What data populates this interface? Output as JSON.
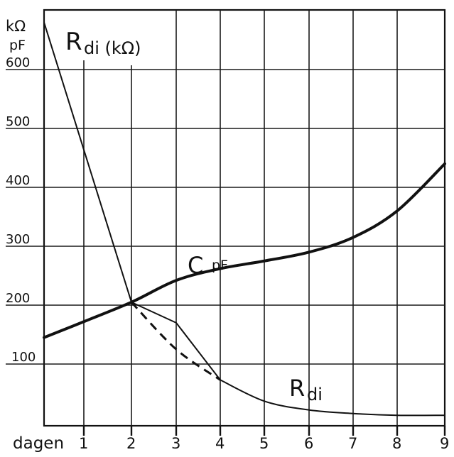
{
  "chart_data": {
    "type": "line",
    "title": "",
    "xlabel": "dagen",
    "ylabel": "kΩ / pF",
    "ylabel_lines": [
      "kΩ",
      "pF"
    ],
    "x_ticks": [
      "1",
      "2",
      "3",
      "4",
      "5",
      "6",
      "7",
      "8",
      "9"
    ],
    "y_ticks": [
      "100",
      "200",
      "300",
      "400",
      "500",
      "600"
    ],
    "xlim": [
      0.1,
      9
    ],
    "ylim": [
      0,
      700
    ],
    "grid": true,
    "legend": "inline curve labels",
    "annotations": [
      {
        "text": "R",
        "sub": "di (kΩ)",
        "note": "top-left title label for R_di axis unit"
      },
      {
        "text": "C",
        "sub": "pF",
        "note": "label on upper curve"
      },
      {
        "text": "R",
        "sub": "di",
        "note": "label on lower curve"
      }
    ],
    "series": [
      {
        "name": "C pF",
        "style": "thick solid",
        "x": [
          0.1,
          1,
          2,
          3,
          4,
          5,
          6,
          7,
          8,
          9
        ],
        "values": [
          145,
          172,
          205,
          242,
          262,
          275,
          290,
          315,
          360,
          440
        ]
      },
      {
        "name": "R di (kΩ)",
        "style": "thin solid",
        "x": [
          0.1,
          2,
          3,
          4,
          5,
          6,
          7,
          8,
          9
        ],
        "values": [
          680,
          205,
          170,
          73,
          37,
          22,
          16,
          13,
          13
        ]
      },
      {
        "name": "R di (kΩ) alternative",
        "style": "dashed",
        "x": [
          2,
          3,
          4
        ],
        "values": [
          205,
          125,
          73
        ]
      }
    ]
  },
  "labels": {
    "y_unit_top": "kΩ",
    "y_unit_bottom": "pF",
    "x_axis_name": "dagen",
    "title_main": "R",
    "title_sub": "di (kΩ)",
    "curve_c_main": "C",
    "curve_c_sub": "pF",
    "curve_r_main": "R",
    "curve_r_sub": "di"
  },
  "colors": {
    "ink": "#111111",
    "paper": "#ffffff"
  }
}
